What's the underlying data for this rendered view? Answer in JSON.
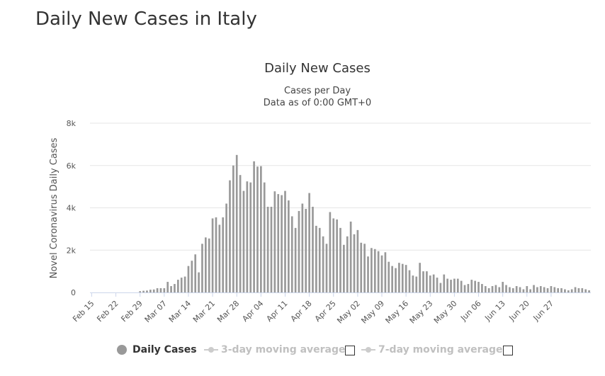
{
  "page": {
    "title": "Daily New Cases in Italy"
  },
  "chart_data": {
    "type": "bar",
    "title": "Daily New Cases",
    "subtitle_1": "Cases per Day",
    "subtitle_2": "Data as of 0:00 GMT+0",
    "ylabel": "Novel Coronavirus Daily Cases",
    "xlabel": "",
    "ylim": [
      0,
      8000
    ],
    "yticks": [
      0,
      2000,
      4000,
      6000,
      8000
    ],
    "ytick_labels": [
      "0",
      "2k",
      "4k",
      "6k",
      "8k"
    ],
    "xtick_labels": [
      "Feb 15",
      "Feb 22",
      "Feb 29",
      "Mar 07",
      "Mar 14",
      "Mar 21",
      "Mar 28",
      "Apr 04",
      "Apr 11",
      "Apr 18",
      "Apr 25",
      "May 02",
      "May 09",
      "May 16",
      "May 23",
      "May 30",
      "Jun 06",
      "Jun 13",
      "Jun 20",
      "Jun 27"
    ],
    "series": [
      {
        "name": "Daily Cases",
        "color": "#999999",
        "values": [
          0,
          0,
          0,
          0,
          0,
          0,
          0,
          0,
          0,
          0,
          0,
          0,
          0,
          0,
          60,
          80,
          90,
          130,
          140,
          200,
          200,
          200,
          500,
          300,
          400,
          600,
          700,
          750,
          1250,
          1500,
          1800,
          950,
          2300,
          2600,
          2550,
          3500,
          3550,
          3200,
          3550,
          4200,
          5300,
          6000,
          6500,
          5550,
          4800,
          5250,
          5200,
          6200,
          5950,
          5970,
          5200,
          4050,
          4050,
          4780,
          4650,
          4600,
          4800,
          4350,
          3600,
          3050,
          3850,
          4200,
          3950,
          4700,
          4050,
          3150,
          3050,
          2650,
          2300,
          3800,
          3500,
          3450,
          3050,
          2250,
          2650,
          3350,
          2750,
          2950,
          2350,
          2300,
          1700,
          2100,
          2050,
          1950,
          1750,
          1900,
          1450,
          1250,
          1150,
          1400,
          1350,
          1300,
          1050,
          800,
          750,
          1400,
          1000,
          1000,
          800,
          850,
          700,
          450,
          850,
          650,
          600,
          650,
          650,
          550,
          350,
          400,
          600,
          550,
          500,
          400,
          300,
          200,
          300,
          350,
          250,
          500,
          350,
          250,
          200,
          300,
          250,
          150,
          300,
          150,
          350,
          250,
          300,
          250,
          200,
          300,
          250,
          200,
          200,
          150,
          100,
          150,
          250,
          200,
          200,
          150,
          100
        ]
      }
    ],
    "grid": "horizontal",
    "legend_position": "bottom-center"
  },
  "legend": {
    "items": [
      {
        "label": "Daily Cases",
        "active": true,
        "color": "#999999"
      },
      {
        "label": "3-day moving average",
        "active": false
      },
      {
        "label": "7-day moving average",
        "active": false
      }
    ]
  }
}
